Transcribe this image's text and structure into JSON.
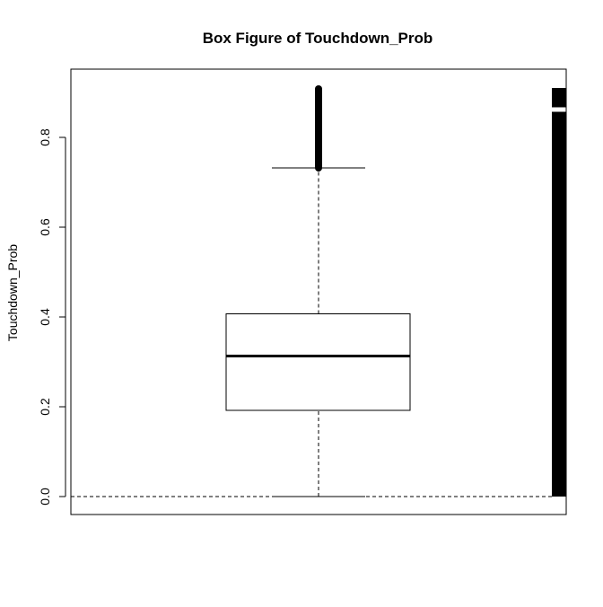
{
  "chart_data": {
    "type": "box",
    "title": "Box Figure of Touchdown_Prob",
    "xlabel": "",
    "ylabel": "Touchdown_Prob",
    "ylim": [
      -0.04,
      0.95
    ],
    "yticks": [
      "0.0",
      "0.2",
      "0.4",
      "0.6",
      "0.8"
    ],
    "ytick_values": [
      0.0,
      0.2,
      0.4,
      0.6,
      0.8
    ],
    "grid": false,
    "box": {
      "whisker_low": 0.0,
      "q1": 0.192,
      "median": 0.313,
      "q3": 0.407,
      "whisker_high": 0.732,
      "outliers_range": [
        0.732,
        0.91
      ]
    },
    "reference_line": 0.0,
    "rug": {
      "ranges": [
        [
          0.0,
          0.857
        ],
        [
          0.867,
          0.91
        ]
      ]
    }
  }
}
